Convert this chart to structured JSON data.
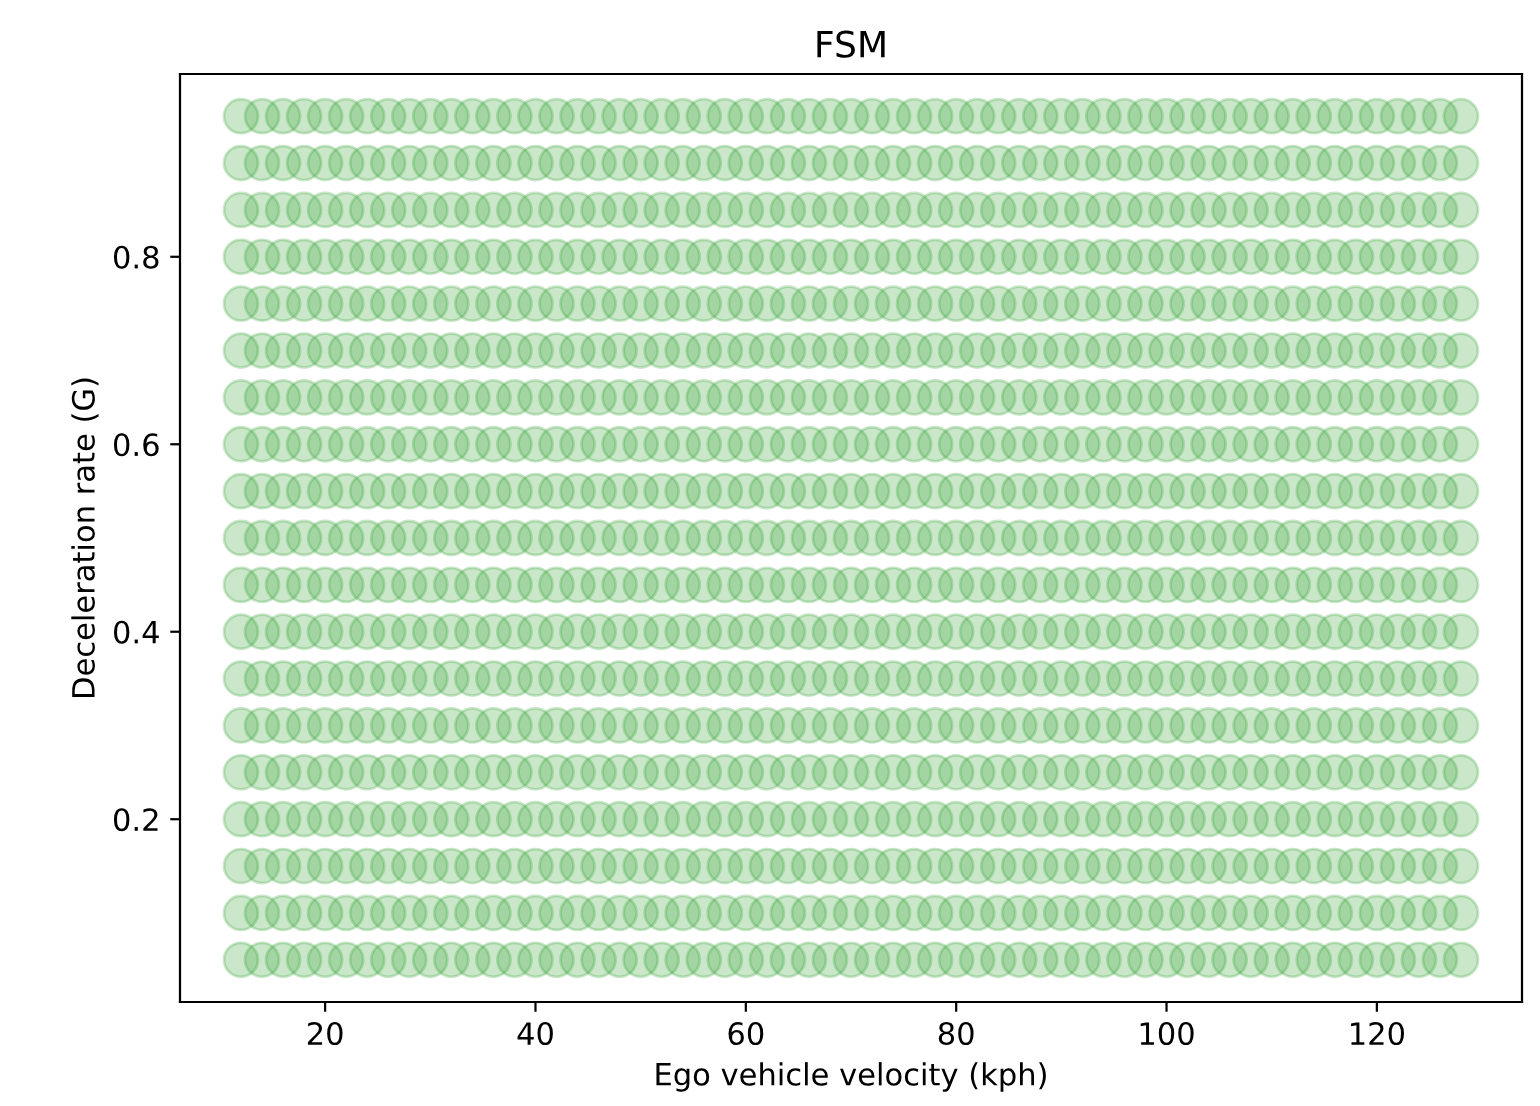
{
  "chart_data": {
    "type": "scatter",
    "title": "FSM",
    "xlabel": "Ego vehicle velocity (kph)",
    "ylabel": "Deceleration rate (G)",
    "marker": "circle",
    "grid": false,
    "legend": false,
    "xlim": [
      6.2,
      133.8
    ],
    "ylim": [
      0.005,
      0.995
    ],
    "xticks": [
      20,
      40,
      60,
      80,
      100,
      120
    ],
    "yticks": [
      0.2,
      0.4,
      0.6,
      0.8
    ],
    "x": [
      12,
      14,
      16,
      18,
      20,
      22,
      24,
      26,
      28,
      30,
      32,
      34,
      36,
      38,
      40,
      42,
      44,
      46,
      48,
      50,
      52,
      54,
      56,
      58,
      60,
      62,
      64,
      66,
      68,
      70,
      72,
      74,
      76,
      78,
      80,
      82,
      84,
      86,
      88,
      90,
      92,
      94,
      96,
      98,
      100,
      102,
      104,
      106,
      108,
      110,
      112,
      114,
      116,
      118,
      120,
      122,
      124,
      126,
      128
    ],
    "series": [
      {
        "color": "#2ca02c",
        "values": [
          0.05,
          0.05,
          0.05,
          0.05,
          0.05,
          0.05,
          0.05,
          0.05,
          0.05,
          0.05,
          0.05,
          0.05,
          0.05,
          0.05,
          0.05,
          0.05,
          0.05,
          0.05,
          0.05,
          0.05,
          0.05,
          0.05,
          0.05,
          0.05,
          0.05,
          0.05,
          0.05,
          0.05,
          0.05,
          0.05,
          0.05,
          0.05,
          0.05,
          0.05,
          0.05,
          0.05,
          0.05,
          0.05,
          0.05,
          0.05,
          0.05,
          0.05,
          0.05,
          0.05,
          0.05,
          0.05,
          0.05,
          0.05,
          0.05,
          0.05,
          0.05,
          0.05,
          0.05,
          0.05,
          0.05,
          0.05,
          0.05,
          0.05,
          0.05
        ]
      },
      {
        "color": "#2ca02c",
        "values": [
          0.1,
          0.1,
          0.1,
          0.1,
          0.1,
          0.1,
          0.1,
          0.1,
          0.1,
          0.1,
          0.1,
          0.1,
          0.1,
          0.1,
          0.1,
          0.1,
          0.1,
          0.1,
          0.1,
          0.1,
          0.1,
          0.1,
          0.1,
          0.1,
          0.1,
          0.1,
          0.1,
          0.1,
          0.1,
          0.1,
          0.1,
          0.1,
          0.1,
          0.1,
          0.1,
          0.1,
          0.1,
          0.1,
          0.1,
          0.1,
          0.1,
          0.1,
          0.1,
          0.1,
          0.1,
          0.1,
          0.1,
          0.1,
          0.1,
          0.1,
          0.1,
          0.1,
          0.1,
          0.1,
          0.1,
          0.1,
          0.1,
          0.1,
          0.1
        ]
      },
      {
        "color": "#2ca02c",
        "values": [
          0.15,
          0.15,
          0.15,
          0.15,
          0.15,
          0.15,
          0.15,
          0.15,
          0.15,
          0.15,
          0.15,
          0.15,
          0.15,
          0.15,
          0.15,
          0.15,
          0.15,
          0.15,
          0.15,
          0.15,
          0.15,
          0.15,
          0.15,
          0.15,
          0.15,
          0.15,
          0.15,
          0.15,
          0.15,
          0.15,
          0.15,
          0.15,
          0.15,
          0.15,
          0.15,
          0.15,
          0.15,
          0.15,
          0.15,
          0.15,
          0.15,
          0.15,
          0.15,
          0.15,
          0.15,
          0.15,
          0.15,
          0.15,
          0.15,
          0.15,
          0.15,
          0.15,
          0.15,
          0.15,
          0.15,
          0.15,
          0.15,
          0.15,
          0.15
        ]
      },
      {
        "color": "#2ca02c",
        "values": [
          0.2,
          0.2,
          0.2,
          0.2,
          0.2,
          0.2,
          0.2,
          0.2,
          0.2,
          0.2,
          0.2,
          0.2,
          0.2,
          0.2,
          0.2,
          0.2,
          0.2,
          0.2,
          0.2,
          0.2,
          0.2,
          0.2,
          0.2,
          0.2,
          0.2,
          0.2,
          0.2,
          0.2,
          0.2,
          0.2,
          0.2,
          0.2,
          0.2,
          0.2,
          0.2,
          0.2,
          0.2,
          0.2,
          0.2,
          0.2,
          0.2,
          0.2,
          0.2,
          0.2,
          0.2,
          0.2,
          0.2,
          0.2,
          0.2,
          0.2,
          0.2,
          0.2,
          0.2,
          0.2,
          0.2,
          0.2,
          0.2,
          0.2,
          0.2
        ]
      },
      {
        "color": "#2ca02c",
        "values": [
          0.25,
          0.25,
          0.25,
          0.25,
          0.25,
          0.25,
          0.25,
          0.25,
          0.25,
          0.25,
          0.25,
          0.25,
          0.25,
          0.25,
          0.25,
          0.25,
          0.25,
          0.25,
          0.25,
          0.25,
          0.25,
          0.25,
          0.25,
          0.25,
          0.25,
          0.25,
          0.25,
          0.25,
          0.25,
          0.25,
          0.25,
          0.25,
          0.25,
          0.25,
          0.25,
          0.25,
          0.25,
          0.25,
          0.25,
          0.25,
          0.25,
          0.25,
          0.25,
          0.25,
          0.25,
          0.25,
          0.25,
          0.25,
          0.25,
          0.25,
          0.25,
          0.25,
          0.25,
          0.25,
          0.25,
          0.25,
          0.25,
          0.25,
          0.25
        ]
      },
      {
        "color": "#2ca02c",
        "values": [
          0.3,
          0.3,
          0.3,
          0.3,
          0.3,
          0.3,
          0.3,
          0.3,
          0.3,
          0.3,
          0.3,
          0.3,
          0.3,
          0.3,
          0.3,
          0.3,
          0.3,
          0.3,
          0.3,
          0.3,
          0.3,
          0.3,
          0.3,
          0.3,
          0.3,
          0.3,
          0.3,
          0.3,
          0.3,
          0.3,
          0.3,
          0.3,
          0.3,
          0.3,
          0.3,
          0.3,
          0.3,
          0.3,
          0.3,
          0.3,
          0.3,
          0.3,
          0.3,
          0.3,
          0.3,
          0.3,
          0.3,
          0.3,
          0.3,
          0.3,
          0.3,
          0.3,
          0.3,
          0.3,
          0.3,
          0.3,
          0.3,
          0.3,
          0.3
        ]
      },
      {
        "color": "#2ca02c",
        "values": [
          0.35,
          0.35,
          0.35,
          0.35,
          0.35,
          0.35,
          0.35,
          0.35,
          0.35,
          0.35,
          0.35,
          0.35,
          0.35,
          0.35,
          0.35,
          0.35,
          0.35,
          0.35,
          0.35,
          0.35,
          0.35,
          0.35,
          0.35,
          0.35,
          0.35,
          0.35,
          0.35,
          0.35,
          0.35,
          0.35,
          0.35,
          0.35,
          0.35,
          0.35,
          0.35,
          0.35,
          0.35,
          0.35,
          0.35,
          0.35,
          0.35,
          0.35,
          0.35,
          0.35,
          0.35,
          0.35,
          0.35,
          0.35,
          0.35,
          0.35,
          0.35,
          0.35,
          0.35,
          0.35,
          0.35,
          0.35,
          0.35,
          0.35,
          0.35
        ]
      },
      {
        "color": "#2ca02c",
        "values": [
          0.4,
          0.4,
          0.4,
          0.4,
          0.4,
          0.4,
          0.4,
          0.4,
          0.4,
          0.4,
          0.4,
          0.4,
          0.4,
          0.4,
          0.4,
          0.4,
          0.4,
          0.4,
          0.4,
          0.4,
          0.4,
          0.4,
          0.4,
          0.4,
          0.4,
          0.4,
          0.4,
          0.4,
          0.4,
          0.4,
          0.4,
          0.4,
          0.4,
          0.4,
          0.4,
          0.4,
          0.4,
          0.4,
          0.4,
          0.4,
          0.4,
          0.4,
          0.4,
          0.4,
          0.4,
          0.4,
          0.4,
          0.4,
          0.4,
          0.4,
          0.4,
          0.4,
          0.4,
          0.4,
          0.4,
          0.4,
          0.4,
          0.4,
          0.4
        ]
      },
      {
        "color": "#2ca02c",
        "values": [
          0.45,
          0.45,
          0.45,
          0.45,
          0.45,
          0.45,
          0.45,
          0.45,
          0.45,
          0.45,
          0.45,
          0.45,
          0.45,
          0.45,
          0.45,
          0.45,
          0.45,
          0.45,
          0.45,
          0.45,
          0.45,
          0.45,
          0.45,
          0.45,
          0.45,
          0.45,
          0.45,
          0.45,
          0.45,
          0.45,
          0.45,
          0.45,
          0.45,
          0.45,
          0.45,
          0.45,
          0.45,
          0.45,
          0.45,
          0.45,
          0.45,
          0.45,
          0.45,
          0.45,
          0.45,
          0.45,
          0.45,
          0.45,
          0.45,
          0.45,
          0.45,
          0.45,
          0.45,
          0.45,
          0.45,
          0.45,
          0.45,
          0.45,
          0.45
        ]
      },
      {
        "color": "#2ca02c",
        "values": [
          0.5,
          0.5,
          0.5,
          0.5,
          0.5,
          0.5,
          0.5,
          0.5,
          0.5,
          0.5,
          0.5,
          0.5,
          0.5,
          0.5,
          0.5,
          0.5,
          0.5,
          0.5,
          0.5,
          0.5,
          0.5,
          0.5,
          0.5,
          0.5,
          0.5,
          0.5,
          0.5,
          0.5,
          0.5,
          0.5,
          0.5,
          0.5,
          0.5,
          0.5,
          0.5,
          0.5,
          0.5,
          0.5,
          0.5,
          0.5,
          0.5,
          0.5,
          0.5,
          0.5,
          0.5,
          0.5,
          0.5,
          0.5,
          0.5,
          0.5,
          0.5,
          0.5,
          0.5,
          0.5,
          0.5,
          0.5,
          0.5,
          0.5,
          0.5
        ]
      },
      {
        "color": "#2ca02c",
        "values": [
          0.55,
          0.55,
          0.55,
          0.55,
          0.55,
          0.55,
          0.55,
          0.55,
          0.55,
          0.55,
          0.55,
          0.55,
          0.55,
          0.55,
          0.55,
          0.55,
          0.55,
          0.55,
          0.55,
          0.55,
          0.55,
          0.55,
          0.55,
          0.55,
          0.55,
          0.55,
          0.55,
          0.55,
          0.55,
          0.55,
          0.55,
          0.55,
          0.55,
          0.55,
          0.55,
          0.55,
          0.55,
          0.55,
          0.55,
          0.55,
          0.55,
          0.55,
          0.55,
          0.55,
          0.55,
          0.55,
          0.55,
          0.55,
          0.55,
          0.55,
          0.55,
          0.55,
          0.55,
          0.55,
          0.55,
          0.55,
          0.55,
          0.55,
          0.55
        ]
      },
      {
        "color": "#2ca02c",
        "values": [
          0.6,
          0.6,
          0.6,
          0.6,
          0.6,
          0.6,
          0.6,
          0.6,
          0.6,
          0.6,
          0.6,
          0.6,
          0.6,
          0.6,
          0.6,
          0.6,
          0.6,
          0.6,
          0.6,
          0.6,
          0.6,
          0.6,
          0.6,
          0.6,
          0.6,
          0.6,
          0.6,
          0.6,
          0.6,
          0.6,
          0.6,
          0.6,
          0.6,
          0.6,
          0.6,
          0.6,
          0.6,
          0.6,
          0.6,
          0.6,
          0.6,
          0.6,
          0.6,
          0.6,
          0.6,
          0.6,
          0.6,
          0.6,
          0.6,
          0.6,
          0.6,
          0.6,
          0.6,
          0.6,
          0.6,
          0.6,
          0.6,
          0.6,
          0.6
        ]
      },
      {
        "color": "#2ca02c",
        "values": [
          0.65,
          0.65,
          0.65,
          0.65,
          0.65,
          0.65,
          0.65,
          0.65,
          0.65,
          0.65,
          0.65,
          0.65,
          0.65,
          0.65,
          0.65,
          0.65,
          0.65,
          0.65,
          0.65,
          0.65,
          0.65,
          0.65,
          0.65,
          0.65,
          0.65,
          0.65,
          0.65,
          0.65,
          0.65,
          0.65,
          0.65,
          0.65,
          0.65,
          0.65,
          0.65,
          0.65,
          0.65,
          0.65,
          0.65,
          0.65,
          0.65,
          0.65,
          0.65,
          0.65,
          0.65,
          0.65,
          0.65,
          0.65,
          0.65,
          0.65,
          0.65,
          0.65,
          0.65,
          0.65,
          0.65,
          0.65,
          0.65,
          0.65,
          0.65
        ]
      },
      {
        "color": "#2ca02c",
        "values": [
          0.7,
          0.7,
          0.7,
          0.7,
          0.7,
          0.7,
          0.7,
          0.7,
          0.7,
          0.7,
          0.7,
          0.7,
          0.7,
          0.7,
          0.7,
          0.7,
          0.7,
          0.7,
          0.7,
          0.7,
          0.7,
          0.7,
          0.7,
          0.7,
          0.7,
          0.7,
          0.7,
          0.7,
          0.7,
          0.7,
          0.7,
          0.7,
          0.7,
          0.7,
          0.7,
          0.7,
          0.7,
          0.7,
          0.7,
          0.7,
          0.7,
          0.7,
          0.7,
          0.7,
          0.7,
          0.7,
          0.7,
          0.7,
          0.7,
          0.7,
          0.7,
          0.7,
          0.7,
          0.7,
          0.7,
          0.7,
          0.7,
          0.7,
          0.7
        ]
      },
      {
        "color": "#2ca02c",
        "values": [
          0.75,
          0.75,
          0.75,
          0.75,
          0.75,
          0.75,
          0.75,
          0.75,
          0.75,
          0.75,
          0.75,
          0.75,
          0.75,
          0.75,
          0.75,
          0.75,
          0.75,
          0.75,
          0.75,
          0.75,
          0.75,
          0.75,
          0.75,
          0.75,
          0.75,
          0.75,
          0.75,
          0.75,
          0.75,
          0.75,
          0.75,
          0.75,
          0.75,
          0.75,
          0.75,
          0.75,
          0.75,
          0.75,
          0.75,
          0.75,
          0.75,
          0.75,
          0.75,
          0.75,
          0.75,
          0.75,
          0.75,
          0.75,
          0.75,
          0.75,
          0.75,
          0.75,
          0.75,
          0.75,
          0.75,
          0.75,
          0.75,
          0.75,
          0.75
        ]
      },
      {
        "color": "#2ca02c",
        "values": [
          0.8,
          0.8,
          0.8,
          0.8,
          0.8,
          0.8,
          0.8,
          0.8,
          0.8,
          0.8,
          0.8,
          0.8,
          0.8,
          0.8,
          0.8,
          0.8,
          0.8,
          0.8,
          0.8,
          0.8,
          0.8,
          0.8,
          0.8,
          0.8,
          0.8,
          0.8,
          0.8,
          0.8,
          0.8,
          0.8,
          0.8,
          0.8,
          0.8,
          0.8,
          0.8,
          0.8,
          0.8,
          0.8,
          0.8,
          0.8,
          0.8,
          0.8,
          0.8,
          0.8,
          0.8,
          0.8,
          0.8,
          0.8,
          0.8,
          0.8,
          0.8,
          0.8,
          0.8,
          0.8,
          0.8,
          0.8,
          0.8,
          0.8,
          0.8
        ]
      },
      {
        "color": "#2ca02c",
        "values": [
          0.85,
          0.85,
          0.85,
          0.85,
          0.85,
          0.85,
          0.85,
          0.85,
          0.85,
          0.85,
          0.85,
          0.85,
          0.85,
          0.85,
          0.85,
          0.85,
          0.85,
          0.85,
          0.85,
          0.85,
          0.85,
          0.85,
          0.85,
          0.85,
          0.85,
          0.85,
          0.85,
          0.85,
          0.85,
          0.85,
          0.85,
          0.85,
          0.85,
          0.85,
          0.85,
          0.85,
          0.85,
          0.85,
          0.85,
          0.85,
          0.85,
          0.85,
          0.85,
          0.85,
          0.85,
          0.85,
          0.85,
          0.85,
          0.85,
          0.85,
          0.85,
          0.85,
          0.85,
          0.85,
          0.85,
          0.85,
          0.85,
          0.85,
          0.85
        ]
      },
      {
        "color": "#2ca02c",
        "values": [
          0.9,
          0.9,
          0.9,
          0.9,
          0.9,
          0.9,
          0.9,
          0.9,
          0.9,
          0.9,
          0.9,
          0.9,
          0.9,
          0.9,
          0.9,
          0.9,
          0.9,
          0.9,
          0.9,
          0.9,
          0.9,
          0.9,
          0.9,
          0.9,
          0.9,
          0.9,
          0.9,
          0.9,
          0.9,
          0.9,
          0.9,
          0.9,
          0.9,
          0.9,
          0.9,
          0.9,
          0.9,
          0.9,
          0.9,
          0.9,
          0.9,
          0.9,
          0.9,
          0.9,
          0.9,
          0.9,
          0.9,
          0.9,
          0.9,
          0.9,
          0.9,
          0.9,
          0.9,
          0.9,
          0.9,
          0.9,
          0.9,
          0.9,
          0.9
        ]
      },
      {
        "color": "#2ca02c",
        "values": [
          0.95,
          0.95,
          0.95,
          0.95,
          0.95,
          0.95,
          0.95,
          0.95,
          0.95,
          0.95,
          0.95,
          0.95,
          0.95,
          0.95,
          0.95,
          0.95,
          0.95,
          0.95,
          0.95,
          0.95,
          0.95,
          0.95,
          0.95,
          0.95,
          0.95,
          0.95,
          0.95,
          0.95,
          0.95,
          0.95,
          0.95,
          0.95,
          0.95,
          0.95,
          0.95,
          0.95,
          0.95,
          0.95,
          0.95,
          0.95,
          0.95,
          0.95,
          0.95,
          0.95,
          0.95,
          0.95,
          0.95,
          0.95,
          0.95,
          0.95,
          0.95,
          0.95,
          0.95,
          0.95,
          0.95,
          0.95,
          0.95,
          0.95,
          0.95
        ]
      }
    ]
  }
}
